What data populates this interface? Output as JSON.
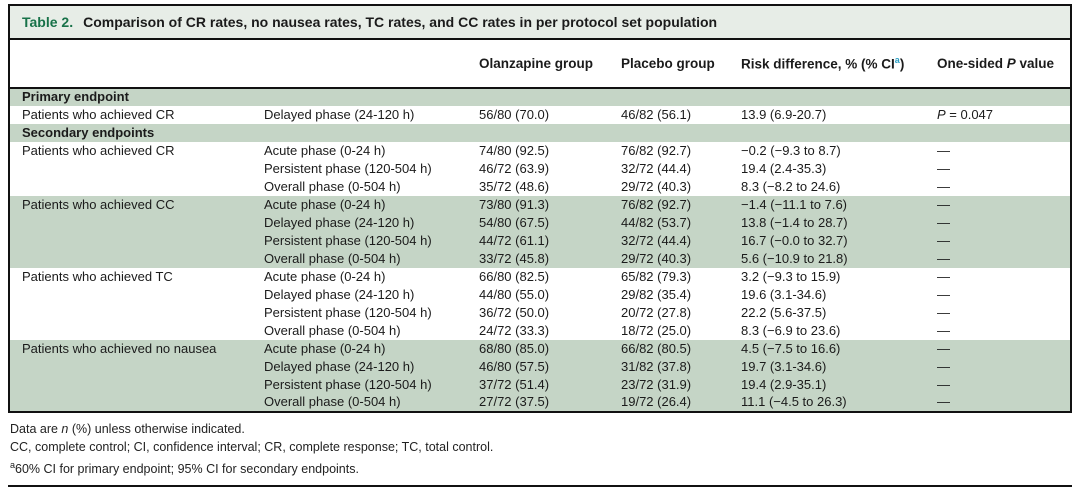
{
  "colors": {
    "band_sage": "#c5d5c6",
    "titlebar_bg": "#e7ede7",
    "title_green": "#187249",
    "sup_teal": "#2b9fc4"
  },
  "caption": {
    "label": "Table 2.",
    "text": "Comparison of CR rates, no nausea rates, TC rates, and CC rates in per protocol set population"
  },
  "headers": {
    "olanzapine": "Olanzapine group",
    "placebo": "Placebo group",
    "risk_prefix": "Risk difference, % (% CI",
    "risk_sup": "a",
    "risk_suffix": ")",
    "p_pre": "One-sided ",
    "p_italic": "P",
    "p_post": " value"
  },
  "table": {
    "blocks": [
      {
        "type": "heading",
        "text": "Primary endpoint",
        "shaded": true
      },
      {
        "type": "group",
        "endpoint": "Patients who achieved CR",
        "shaded": false,
        "rows": [
          {
            "phase": "Delayed phase (24-120 h)",
            "olanzapine": "56/80 (70.0)",
            "placebo": "46/82 (56.1)",
            "risk": "13.9 (6.9-20.7)",
            "p": "P = 0.047"
          }
        ]
      },
      {
        "type": "heading",
        "text": "Secondary endpoints",
        "shaded": true
      },
      {
        "type": "group",
        "endpoint": "Patients who achieved CR",
        "shaded": false,
        "rows": [
          {
            "phase": "Acute phase (0-24 h)",
            "olanzapine": "74/80 (92.5)",
            "placebo": "76/82 (92.7)",
            "risk": "−0.2 (−9.3 to 8.7)",
            "p": "—"
          },
          {
            "phase": "Persistent phase (120-504 h)",
            "olanzapine": "46/72 (63.9)",
            "placebo": "32/72 (44.4)",
            "risk": "19.4 (2.4-35.3)",
            "p": "—"
          },
          {
            "phase": "Overall phase (0-504 h)",
            "olanzapine": "35/72 (48.6)",
            "placebo": "29/72 (40.3)",
            "risk": "8.3 (−8.2 to 24.6)",
            "p": "—"
          }
        ]
      },
      {
        "type": "group",
        "endpoint": "Patients who achieved CC",
        "shaded": true,
        "rows": [
          {
            "phase": "Acute phase (0-24 h)",
            "olanzapine": "73/80 (91.3)",
            "placebo": "76/82 (92.7)",
            "risk": "−1.4 (−11.1 to 7.6)",
            "p": "—"
          },
          {
            "phase": "Delayed phase (24-120 h)",
            "olanzapine": "54/80 (67.5)",
            "placebo": "44/82 (53.7)",
            "risk": "13.8 (−1.4 to 28.7)",
            "p": "—"
          },
          {
            "phase": "Persistent phase (120-504 h)",
            "olanzapine": "44/72 (61.1)",
            "placebo": "32/72 (44.4)",
            "risk": "16.7 (−0.0 to 32.7)",
            "p": "—"
          },
          {
            "phase": "Overall phase (0-504 h)",
            "olanzapine": "33/72 (45.8)",
            "placebo": "29/72 (40.3)",
            "risk": "5.6 (−10.9 to 21.8)",
            "p": "—"
          }
        ]
      },
      {
        "type": "group",
        "endpoint": "Patients who achieved TC",
        "shaded": false,
        "rows": [
          {
            "phase": "Acute phase (0-24 h)",
            "olanzapine": "66/80 (82.5)",
            "placebo": "65/82 (79.3)",
            "risk": "3.2 (−9.3 to 15.9)",
            "p": "—"
          },
          {
            "phase": "Delayed phase (24-120 h)",
            "olanzapine": "44/80 (55.0)",
            "placebo": "29/82 (35.4)",
            "risk": "19.6 (3.1-34.6)",
            "p": "—"
          },
          {
            "phase": "Persistent phase (120-504 h)",
            "olanzapine": "36/72 (50.0)",
            "placebo": "20/72 (27.8)",
            "risk": "22.2 (5.6-37.5)",
            "p": "—"
          },
          {
            "phase": "Overall phase (0-504 h)",
            "olanzapine": "24/72 (33.3)",
            "placebo": "18/72 (25.0)",
            "risk": "8.3 (−6.9 to 23.6)",
            "p": "—"
          }
        ]
      },
      {
        "type": "group",
        "endpoint": "Patients who achieved no nausea",
        "shaded": true,
        "rows": [
          {
            "phase": "Acute phase (0-24 h)",
            "olanzapine": "68/80 (85.0)",
            "placebo": "66/82 (80.5)",
            "risk": "4.5 (−7.5 to 16.6)",
            "p": "—"
          },
          {
            "phase": "Delayed phase (24-120 h)",
            "olanzapine": "46/80 (57.5)",
            "placebo": "31/82 (37.8)",
            "risk": "19.7 (3.1-34.6)",
            "p": "—"
          },
          {
            "phase": "Persistent phase (120-504 h)",
            "olanzapine": "37/72 (51.4)",
            "placebo": "23/72 (31.9)",
            "risk": "19.4 (2.9-35.1)",
            "p": "—"
          },
          {
            "phase": "Overall phase (0-504 h)",
            "olanzapine": "27/72 (37.5)",
            "placebo": "19/72 (26.4)",
            "risk": "11.1 (−4.5 to 26.3)",
            "p": "—"
          }
        ]
      }
    ]
  },
  "footnotes": {
    "line1_pre": "Data are ",
    "line1_italic": "n",
    "line1_post": " (%) unless otherwise indicated.",
    "line2": "CC, complete control; CI, confidence interval; CR, complete response; TC, total control.",
    "line3_sup": "a",
    "line3_text": "60% CI for primary endpoint; 95% CI for secondary endpoints."
  }
}
